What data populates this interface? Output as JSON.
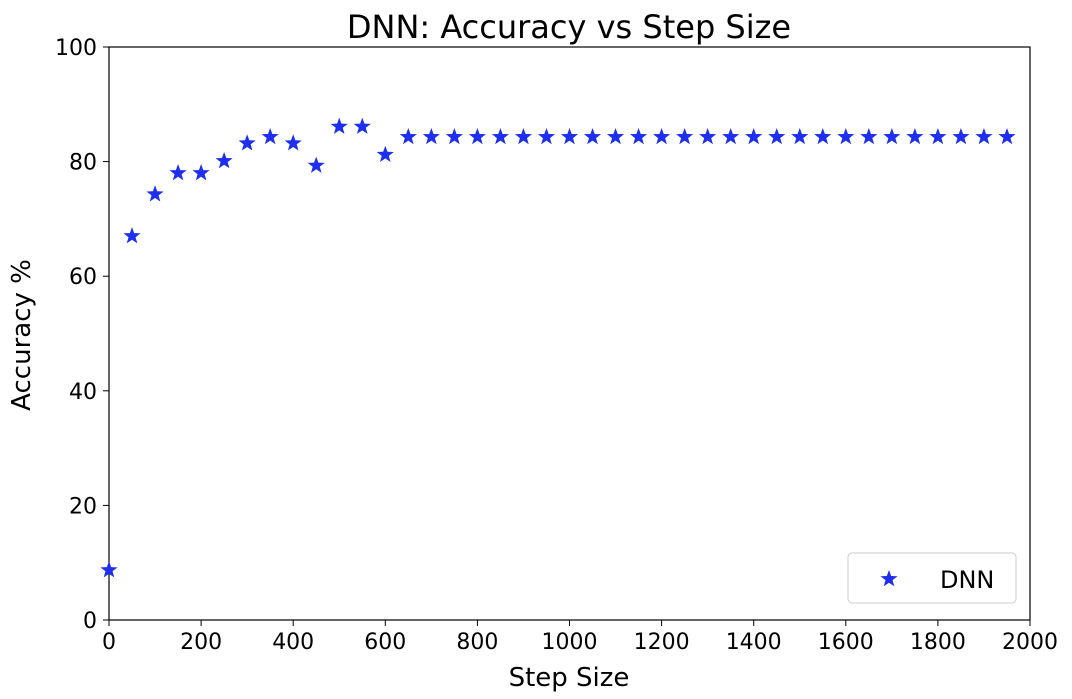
{
  "chart_data": {
    "type": "scatter",
    "title": "DNN: Accuracy vs Step Size",
    "xlabel": "Step Size",
    "ylabel": "Accuracy %",
    "xlim": [
      0,
      2000
    ],
    "ylim": [
      0,
      100
    ],
    "xticks": [
      0,
      200,
      400,
      600,
      800,
      1000,
      1200,
      1400,
      1600,
      1800,
      2000
    ],
    "yticks": [
      0,
      20,
      40,
      60,
      80,
      100
    ],
    "grid": false,
    "legend_position": "bottom-right",
    "marker": "star",
    "color": "#1f2ff0",
    "series": [
      {
        "name": "DNN",
        "x": [
          0,
          50,
          100,
          150,
          200,
          250,
          300,
          350,
          400,
          450,
          500,
          550,
          600,
          650,
          700,
          750,
          800,
          850,
          900,
          950,
          1000,
          1050,
          1100,
          1150,
          1200,
          1250,
          1300,
          1350,
          1400,
          1450,
          1500,
          1550,
          1600,
          1650,
          1700,
          1750,
          1800,
          1850,
          1900,
          1950
        ],
        "y": [
          8.7,
          67.0,
          74.3,
          78.0,
          78.0,
          80.1,
          83.2,
          84.3,
          83.2,
          79.3,
          86.1,
          86.1,
          81.2,
          84.3,
          84.3,
          84.3,
          84.3,
          84.3,
          84.3,
          84.3,
          84.3,
          84.3,
          84.3,
          84.3,
          84.3,
          84.3,
          84.3,
          84.3,
          84.3,
          84.3,
          84.3,
          84.3,
          84.3,
          84.3,
          84.3,
          84.3,
          84.3,
          84.3,
          84.3,
          84.3
        ]
      }
    ]
  }
}
